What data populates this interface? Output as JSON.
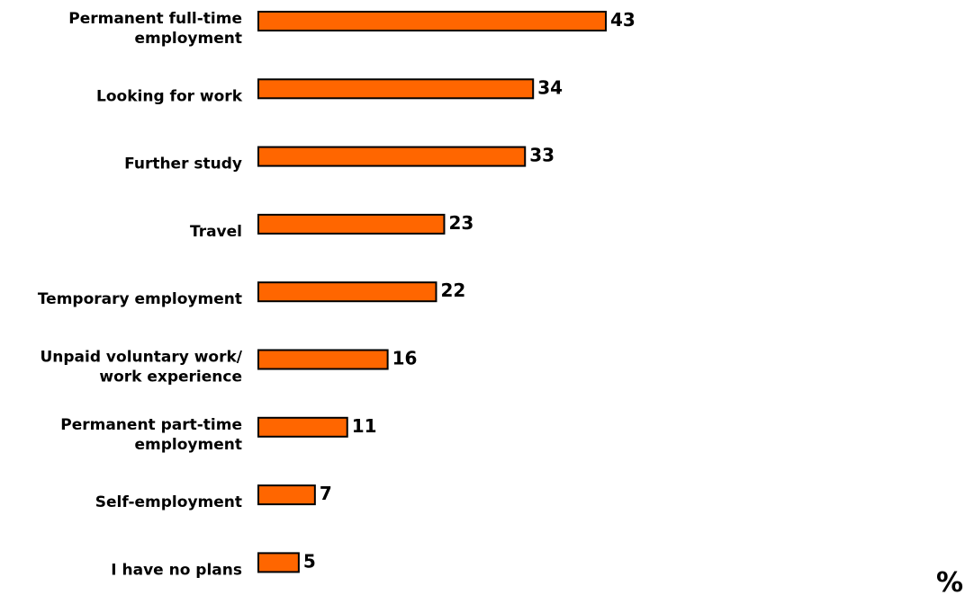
{
  "chart_data": {
    "type": "bar",
    "orientation": "horizontal",
    "categories": [
      [
        "Permanent full-time",
        "employment"
      ],
      [
        "Looking for work"
      ],
      [
        "Further study"
      ],
      [
        "Travel"
      ],
      [
        "Temporary employment"
      ],
      [
        "Unpaid voluntary work/",
        "work experience"
      ],
      [
        "Permanent part-time",
        "employment"
      ],
      [
        "Self-employment"
      ],
      [
        "I have no plans"
      ]
    ],
    "values": [
      43,
      34,
      33,
      23,
      22,
      16,
      11,
      7,
      5
    ],
    "value_labels": [
      "43",
      "34",
      "33",
      "23",
      "22",
      "16",
      "11",
      "7",
      "5"
    ],
    "unit_label": "%",
    "xlim": [
      0,
      43
    ],
    "grid": false,
    "legend": "none",
    "colors": {
      "bar_fill": "#FF6600",
      "bar_stroke": "#000000",
      "text": "#000000",
      "background": "#FFFFFF"
    }
  }
}
